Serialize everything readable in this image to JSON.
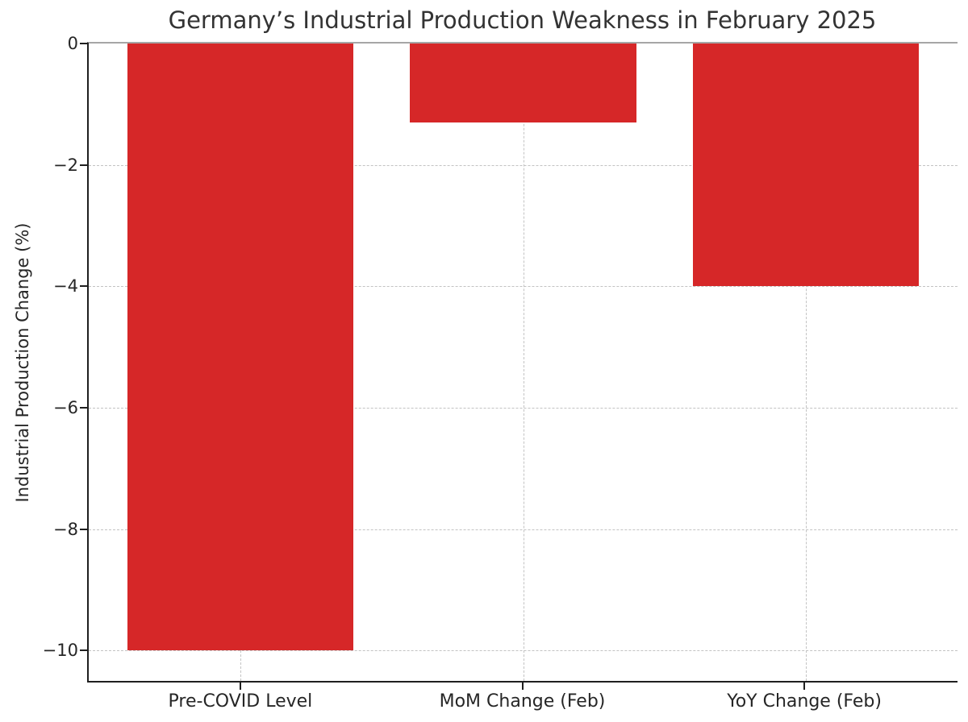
{
  "chart_data": {
    "type": "bar",
    "title": "Germany’s Industrial Production Weakness in February 2025",
    "categories": [
      "Pre-COVID Level",
      "MoM Change (Feb)",
      "YoY Change (Feb)"
    ],
    "values": [
      -10.0,
      -1.3,
      -4.0
    ],
    "xlabel": "",
    "ylabel": "Industrial Production Change (%)",
    "ylim": [
      -10.5,
      0
    ],
    "yticks": [
      0,
      -2,
      -4,
      -6,
      -8,
      -10
    ],
    "ytick_labels": [
      "0",
      "−2",
      "−4",
      "−6",
      "−8",
      "−10"
    ],
    "bar_color": "#d62728",
    "grid": true,
    "grid_color": "#c3c3c3",
    "axis_color": "#1f1f1f",
    "title_color": "#333333",
    "legend": "none"
  }
}
